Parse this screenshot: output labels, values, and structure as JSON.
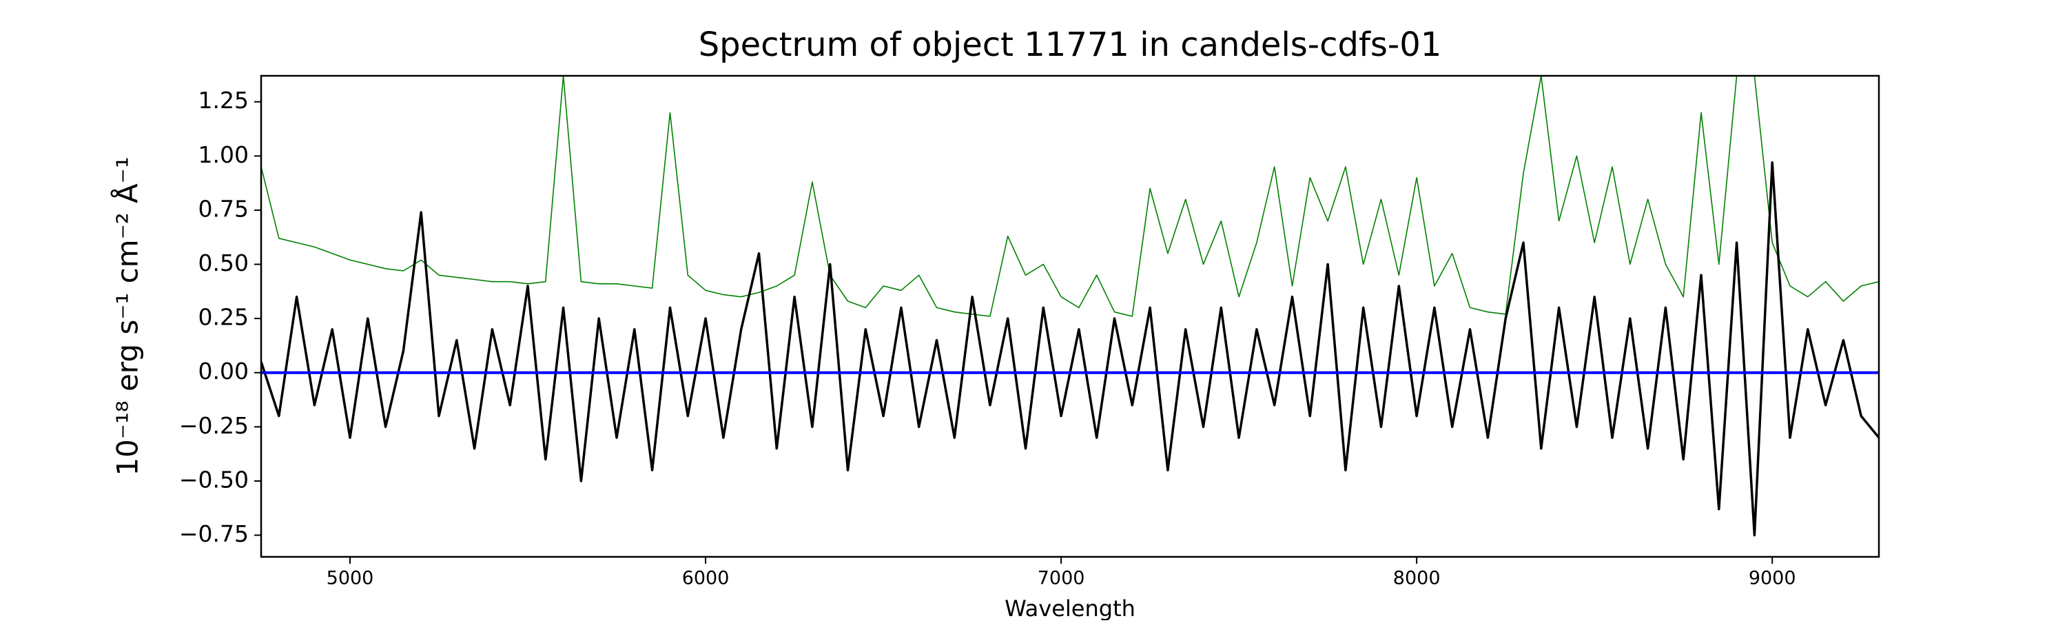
{
  "chart_data": {
    "type": "line",
    "title": "Spectrum of object 11771 in candels-cdfs-01",
    "xlabel": "Wavelength",
    "ylabel": "10⁻¹⁸ erg s⁻¹ cm⁻² Å⁻¹",
    "xlim": [
      4750,
      9300
    ],
    "ylim": [
      -0.85,
      1.37
    ],
    "xticks": [
      5000,
      6000,
      7000,
      8000,
      9000
    ],
    "yticks": [
      {
        "value": -0.75,
        "label": "−0.75"
      },
      {
        "value": -0.5,
        "label": "−0.50"
      },
      {
        "value": -0.25,
        "label": "−0.25"
      },
      {
        "value": 0,
        "label": "0.00"
      },
      {
        "value": 0.25,
        "label": "0.25"
      },
      {
        "value": 0.5,
        "label": "0.50"
      },
      {
        "value": 0.75,
        "label": "0.75"
      },
      {
        "value": 1,
        "label": "1.00"
      },
      {
        "value": 1.25,
        "label": "1.25"
      }
    ],
    "x": [
      4750,
      4800,
      4850,
      4900,
      4950,
      5000,
      5050,
      5100,
      5150,
      5200,
      5250,
      5300,
      5350,
      5400,
      5450,
      5500,
      5550,
      5600,
      5650,
      5700,
      5750,
      5800,
      5850,
      5900,
      5950,
      6000,
      6050,
      6100,
      6150,
      6200,
      6250,
      6300,
      6350,
      6400,
      6450,
      6500,
      6550,
      6600,
      6650,
      6700,
      6750,
      6800,
      6850,
      6900,
      6950,
      7000,
      7050,
      7100,
      7150,
      7200,
      7250,
      7300,
      7350,
      7400,
      7450,
      7500,
      7550,
      7600,
      7650,
      7700,
      7750,
      7800,
      7850,
      7900,
      7950,
      8000,
      8050,
      8100,
      8150,
      8200,
      8250,
      8300,
      8350,
      8400,
      8450,
      8500,
      8550,
      8600,
      8650,
      8700,
      8750,
      8800,
      8850,
      8900,
      8950,
      9000,
      9050,
      9100,
      9150,
      9200,
      9250,
      9300
    ],
    "series": [
      {
        "color": "#008000",
        "width": 1.6,
        "values": [
          0.95,
          0.62,
          0.6,
          0.58,
          0.55,
          0.52,
          0.5,
          0.48,
          0.47,
          0.52,
          0.45,
          0.44,
          0.43,
          0.42,
          0.42,
          0.41,
          0.42,
          1.37,
          0.42,
          0.41,
          0.41,
          0.4,
          0.39,
          1.2,
          0.45,
          0.38,
          0.36,
          0.35,
          0.37,
          0.4,
          0.45,
          0.88,
          0.45,
          0.33,
          0.3,
          0.4,
          0.38,
          0.45,
          0.3,
          0.28,
          0.27,
          0.26,
          0.63,
          0.45,
          0.5,
          0.35,
          0.3,
          0.45,
          0.28,
          0.26,
          0.85,
          0.55,
          0.8,
          0.5,
          0.7,
          0.35,
          0.6,
          0.95,
          0.4,
          0.9,
          0.7,
          0.95,
          0.5,
          0.8,
          0.45,
          0.9,
          0.4,
          0.55,
          0.3,
          0.28,
          0.27,
          0.92,
          1.37,
          0.7,
          1.0,
          0.6,
          0.95,
          0.5,
          0.8,
          0.5,
          0.35,
          1.2,
          0.5,
          1.37,
          1.37,
          0.6,
          0.4,
          0.35,
          0.42,
          0.33,
          0.4,
          0.42
        ]
      },
      {
        "color": "#000000",
        "width": 3.5,
        "values": [
          0.05,
          -0.2,
          0.35,
          -0.15,
          0.2,
          -0.3,
          0.25,
          -0.25,
          0.1,
          0.74,
          -0.2,
          0.15,
          -0.35,
          0.2,
          -0.15,
          0.4,
          -0.4,
          0.3,
          -0.5,
          0.25,
          -0.3,
          0.2,
          -0.45,
          0.3,
          -0.2,
          0.25,
          -0.3,
          0.2,
          0.55,
          -0.35,
          0.35,
          -0.25,
          0.5,
          -0.45,
          0.2,
          -0.2,
          0.3,
          -0.25,
          0.15,
          -0.3,
          0.35,
          -0.15,
          0.25,
          -0.35,
          0.3,
          -0.2,
          0.2,
          -0.3,
          0.25,
          -0.15,
          0.3,
          -0.45,
          0.2,
          -0.25,
          0.3,
          -0.3,
          0.2,
          -0.15,
          0.35,
          -0.2,
          0.5,
          -0.45,
          0.3,
          -0.25,
          0.4,
          -0.2,
          0.3,
          -0.25,
          0.2,
          -0.3,
          0.25,
          0.6,
          -0.35,
          0.3,
          -0.25,
          0.35,
          -0.3,
          0.25,
          -0.35,
          0.3,
          -0.4,
          0.45,
          -0.63,
          0.6,
          -0.75,
          0.97,
          -0.3,
          0.2,
          -0.15,
          0.15,
          -0.2,
          -0.3
        ]
      },
      {
        "color": "#0000ff",
        "width": 4,
        "x": [
          4750,
          9300
        ],
        "values": [
          0,
          0
        ]
      }
    ]
  }
}
